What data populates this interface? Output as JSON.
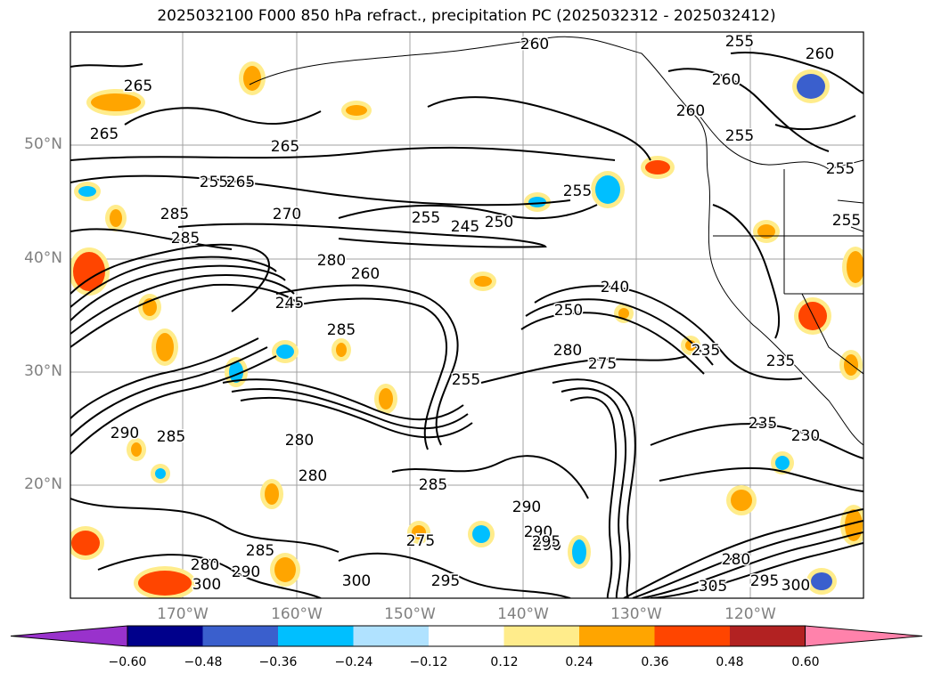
{
  "title": "2025032100 F000 850 hPa refract., precipitation PC (2025032312 - 2025032412)",
  "lat_labels": [
    "50°N",
    "40°N",
    "30°N",
    "20°N"
  ],
  "lon_labels": [
    "170°W",
    "160°W",
    "150°W",
    "140°W",
    "130°W",
    "120°W"
  ],
  "colorbar": {
    "colors": [
      "#9932cc",
      "#00008b",
      "#3a5fcd",
      "#00bfff",
      "#b0e2ff",
      "#ffffff",
      "#ffec8b",
      "#ffa500",
      "#ff4500",
      "#b22222",
      "#ff82ab"
    ],
    "ticks": [
      "−0.60",
      "−0.48",
      "−0.36",
      "−0.24",
      "−0.12",
      "0.12",
      "0.24",
      "0.36",
      "0.48",
      "0.60"
    ]
  },
  "contour_labels": [
    "265",
    "265",
    "265",
    "260",
    "255",
    "255",
    "260",
    "265",
    "260",
    "260",
    "255",
    "255",
    "255",
    "255",
    "270",
    "255",
    "245",
    "250",
    "285",
    "285",
    "280",
    "260",
    "240",
    "245",
    "250",
    "285",
    "280",
    "275",
    "235",
    "235",
    "255",
    "235",
    "230",
    "285",
    "290",
    "280",
    "280",
    "285",
    "290",
    "275",
    "285",
    "290",
    "280",
    "290",
    "290",
    "295",
    "280",
    "295",
    "300",
    "305",
    "300",
    "300",
    "295"
  ]
}
